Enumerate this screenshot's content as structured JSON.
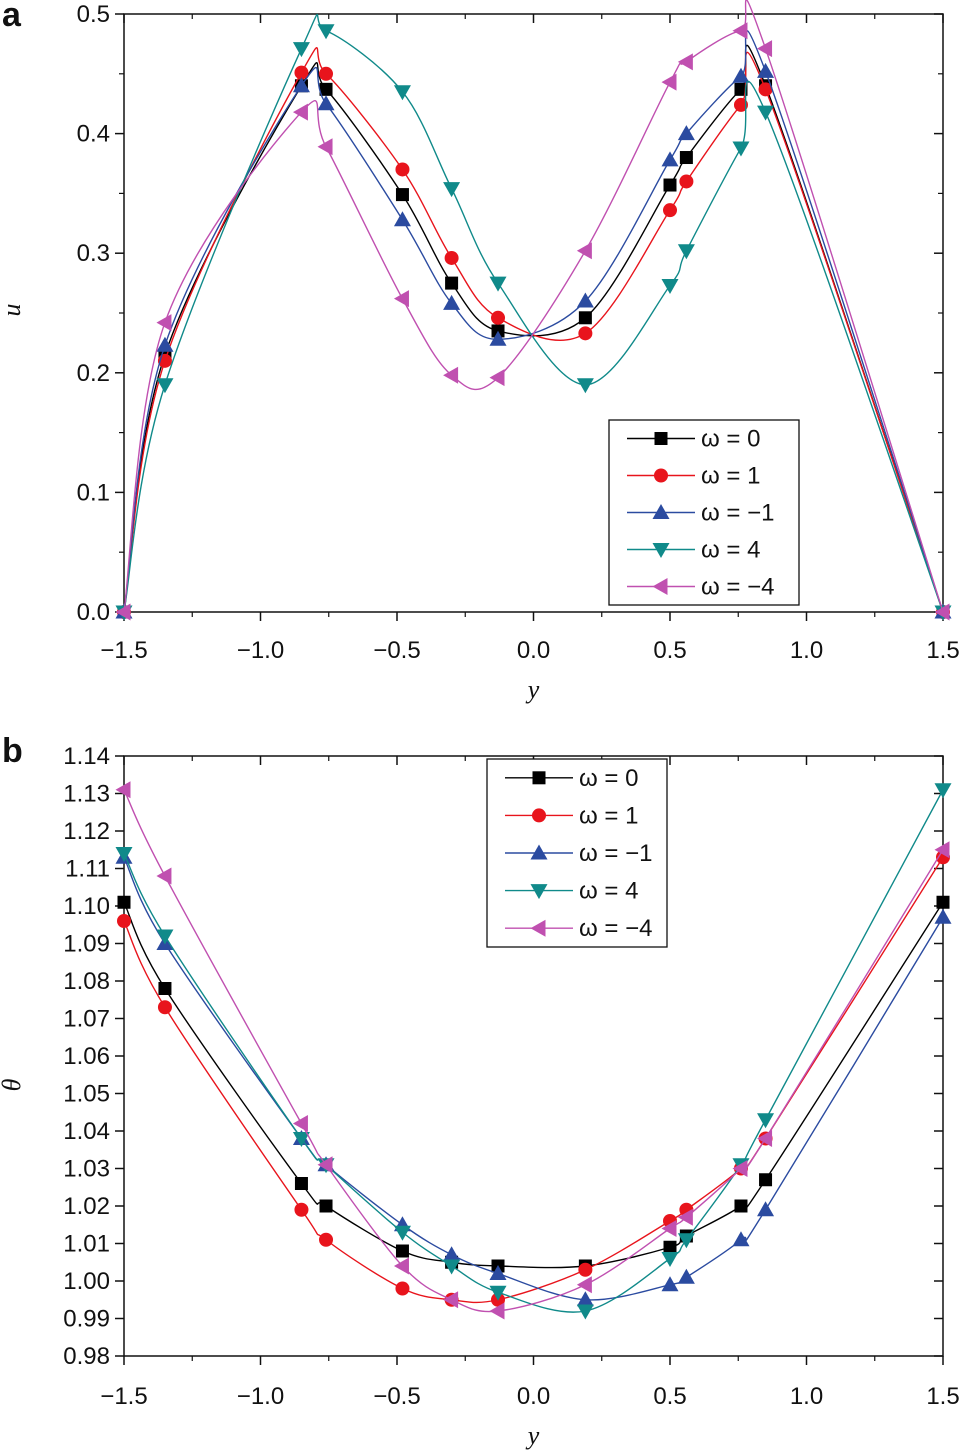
{
  "chart_data": [
    {
      "type": "line",
      "panel_label": "a",
      "xlabel": "y",
      "ylabel": "u",
      "xlim": [
        -1.5,
        1.5
      ],
      "ylim": [
        0.0,
        0.5
      ],
      "xticks": [
        "−1.5",
        "−1.0",
        "−0.5",
        "0.0",
        "0.5",
        "1.0",
        "1.5"
      ],
      "yticks": [
        "0.0",
        "0.1",
        "0.2",
        "0.3",
        "0.4",
        "0.5"
      ],
      "grid": false,
      "legend_position": "bottom-right",
      "x": [
        -1.5,
        -1.35,
        -0.85,
        -0.76,
        -0.48,
        -0.3,
        -0.13,
        0.19,
        0.5,
        0.56,
        0.76,
        0.85,
        1.5
      ],
      "series": [
        {
          "name": "ω = 0",
          "color": "#000000",
          "marker": "square",
          "values": [
            0,
            0.215,
            0.44,
            0.437,
            0.349,
            0.275,
            0.235,
            0.246,
            0.357,
            0.38,
            0.437,
            0.44,
            0
          ]
        },
        {
          "name": "ω = 1",
          "color": "#e8141c",
          "marker": "circle",
          "values": [
            0,
            0.21,
            0.451,
            0.45,
            0.37,
            0.296,
            0.246,
            0.233,
            0.336,
            0.36,
            0.424,
            0.437,
            0
          ]
        },
        {
          "name": "ω = −1",
          "color": "#2b4ba0",
          "marker": "triangle-up",
          "values": [
            0,
            0.223,
            0.44,
            0.425,
            0.328,
            0.258,
            0.228,
            0.26,
            0.378,
            0.4,
            0.448,
            0.452,
            0
          ]
        },
        {
          "name": "ω = 4",
          "color": "#108a8a",
          "marker": "triangle-down",
          "values": [
            0,
            0.19,
            0.471,
            0.486,
            0.435,
            0.354,
            0.275,
            0.19,
            0.273,
            0.302,
            0.388,
            0.418,
            0
          ]
        },
        {
          "name": "ω = −4",
          "color": "#c050b0",
          "marker": "triangle-left",
          "values": [
            0,
            0.242,
            0.418,
            0.389,
            0.262,
            0.198,
            0.196,
            0.302,
            0.443,
            0.46,
            0.486,
            0.471,
            0
          ]
        }
      ]
    },
    {
      "type": "line",
      "panel_label": "b",
      "xlabel": "y",
      "ylabel": "θ",
      "xlim": [
        -1.5,
        1.5
      ],
      "ylim": [
        0.98,
        1.14
      ],
      "xticks": [
        "−1.5",
        "−1.0",
        "−0.5",
        "0.0",
        "0.5",
        "1.0",
        "1.5"
      ],
      "yticks": [
        "0.98",
        "0.99",
        "1.00",
        "1.01",
        "1.02",
        "1.03",
        "1.04",
        "1.05",
        "1.06",
        "1.07",
        "1.08",
        "1.09",
        "1.10",
        "1.11",
        "1.12",
        "1.13",
        "1.14"
      ],
      "grid": false,
      "legend_position": "top-center",
      "x": [
        -1.5,
        -1.35,
        -0.85,
        -0.76,
        -0.48,
        -0.3,
        -0.13,
        0.19,
        0.5,
        0.56,
        0.76,
        0.85,
        1.5
      ],
      "series": [
        {
          "name": "ω = 0",
          "color": "#000000",
          "marker": "square",
          "values": [
            1.101,
            1.078,
            1.026,
            1.02,
            1.008,
            1.005,
            1.004,
            1.004,
            1.009,
            1.012,
            1.02,
            1.027,
            1.101
          ]
        },
        {
          "name": "ω = 1",
          "color": "#e8141c",
          "marker": "circle",
          "values": [
            1.096,
            1.073,
            1.019,
            1.011,
            0.998,
            0.995,
            0.995,
            1.003,
            1.016,
            1.019,
            1.03,
            1.038,
            1.113
          ]
        },
        {
          "name": "ω = −1",
          "color": "#2b4ba0",
          "marker": "triangle-up",
          "values": [
            1.113,
            1.09,
            1.038,
            1.031,
            1.015,
            1.007,
            1.002,
            0.995,
            0.999,
            1.001,
            1.011,
            1.019,
            1.097
          ]
        },
        {
          "name": "ω = 4",
          "color": "#108a8a",
          "marker": "triangle-down",
          "values": [
            1.114,
            1.092,
            1.038,
            1.031,
            1.013,
            1.004,
            0.997,
            0.992,
            1.006,
            1.011,
            1.031,
            1.043,
            1.131
          ]
        },
        {
          "name": "ω = −4",
          "color": "#c050b0",
          "marker": "triangle-left",
          "values": [
            1.131,
            1.108,
            1.042,
            1.031,
            1.004,
            0.995,
            0.992,
            0.999,
            1.014,
            1.017,
            1.03,
            1.038,
            1.115
          ]
        }
      ]
    }
  ]
}
